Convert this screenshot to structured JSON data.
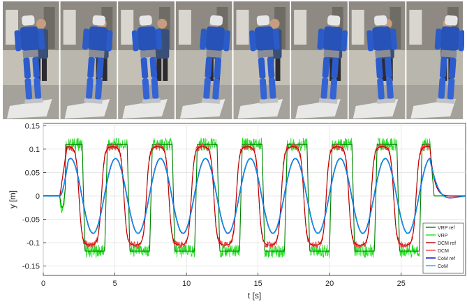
{
  "photo_strip": {
    "frames": [
      "frame-1",
      "frame-2",
      "frame-3",
      "frame-4",
      "frame-5",
      "frame-6",
      "frame-7",
      "frame-8"
    ]
  },
  "colors": {
    "vrp_ref": "#008000",
    "vrp": "#22dd22",
    "dcm_ref": "#b50000",
    "dcm": "#f04040",
    "com_ref": "#0000c8",
    "com": "#00b6e6"
  },
  "chart_data": {
    "type": "line",
    "title": "",
    "xlabel": "t [s]",
    "ylabel": "y [m]",
    "xlim": [
      0,
      29.5
    ],
    "ylim": [
      -0.17,
      0.155
    ],
    "xticks": [
      0,
      5,
      10,
      15,
      20,
      25
    ],
    "yticks": [
      -0.15,
      -0.1,
      -0.05,
      0,
      0.05,
      0.1,
      0.15
    ],
    "xtick_labels": [
      "0",
      "5",
      "10",
      "15",
      "20",
      "25"
    ],
    "ytick_labels": [
      "-0.15",
      "-0.1",
      "-0.05",
      "0",
      "0.05",
      "0.1",
      "0.15"
    ],
    "grid": true,
    "legend_position": "bottom-right",
    "gait": {
      "start_time": 1.15,
      "step_period": 1.57,
      "num_half_cycles": 16,
      "end_time": 27.0,
      "vrp_amplitude": 0.11,
      "vrp_amplitude_negative": -0.118,
      "dcm_amplitude": 0.105,
      "com_amplitude": 0.08
    },
    "series": [
      {
        "name": "VRP ref",
        "style": "solid"
      },
      {
        "name": "VRP",
        "style": "solid"
      },
      {
        "name": "DCM ref",
        "style": "solid"
      },
      {
        "name": "DCM",
        "style": "solid"
      },
      {
        "name": "CoM ref",
        "style": "solid"
      },
      {
        "name": "CoM",
        "style": "solid"
      }
    ]
  }
}
